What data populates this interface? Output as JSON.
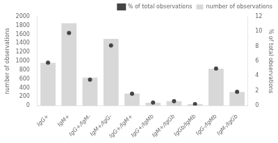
{
  "chart_data": {
    "type": "bar",
    "categories": [
      "IgG+",
      "IgM+",
      "IgG+/IgM-",
      "IgM+/IgG-",
      "IgG+/IgM+",
      "IgG+/IgMb",
      "IgM+/IgGb",
      "IgGb/IgMb",
      "IgG-/IgMb",
      "IgM-/IgGb"
    ],
    "series": [
      {
        "name": "number of observations",
        "type": "bar",
        "color": "#d8d8d8",
        "values": [
          960,
          1850,
          630,
          1500,
          270,
          65,
          100,
          30,
          830,
          305
        ]
      },
      {
        "name": "% of total observations",
        "type": "scatter",
        "marker": "circle",
        "color": "#444444",
        "axis": "y2",
        "values": [
          5.8,
          9.8,
          3.5,
          8.1,
          1.6,
          0.4,
          0.6,
          0.2,
          5.0,
          1.85
        ]
      }
    ],
    "ylabel": "number of observations",
    "y2label": "% of total observations",
    "ylim": [
      0,
      2000
    ],
    "yticks": [
      0,
      200,
      400,
      600,
      800,
      1000,
      1200,
      1400,
      1600,
      1800,
      2000
    ],
    "y2lim": [
      0,
      12
    ],
    "y2ticks": [
      0,
      2,
      4,
      6,
      8,
      10,
      12
    ],
    "grid": false,
    "legend": "upper right"
  }
}
